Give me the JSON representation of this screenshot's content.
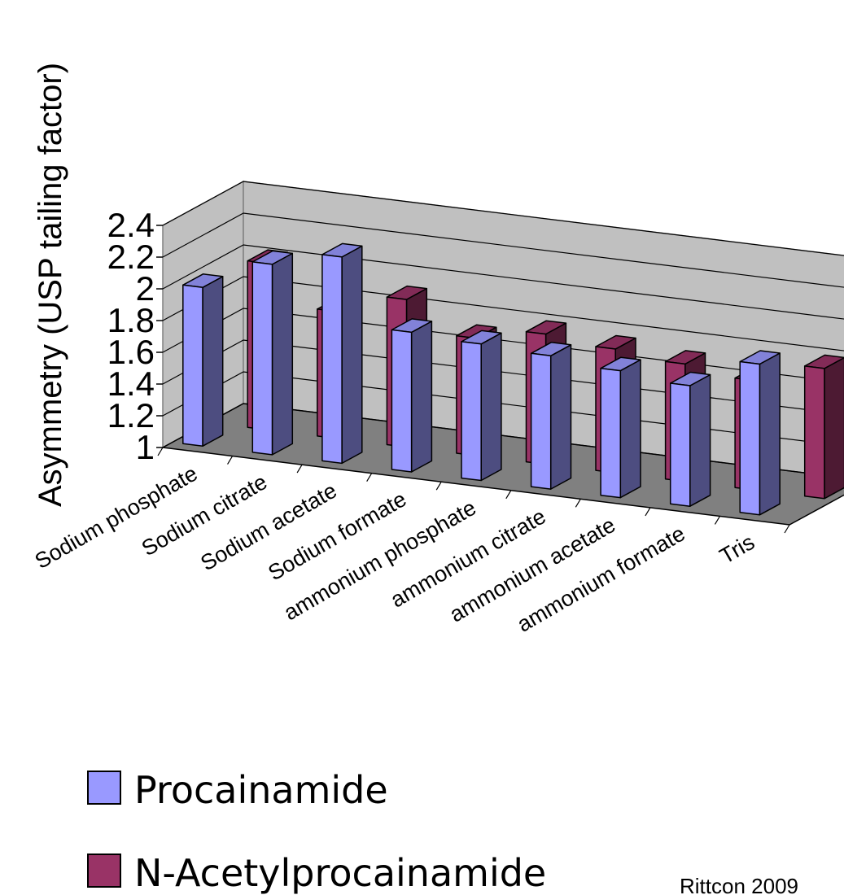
{
  "chart_data": {
    "type": "bar",
    "style": "3d-clustered-column",
    "categories": [
      "Sodium phosphate",
      "Sodium citrate",
      "Sodium acetate",
      "Sodium formate",
      "ammonium phosphate",
      "ammonium citrate",
      "ammonium acetate",
      "ammonium formate",
      "Tris"
    ],
    "series": [
      {
        "name": "Procainamide",
        "color": "#9999ff",
        "values": [
          2.0,
          2.2,
          2.3,
          1.88,
          1.86,
          1.84,
          1.8,
          1.76,
          1.95
        ]
      },
      {
        "name": "N-Acetylprocainamide",
        "color": "#993366",
        "values": [
          2.05,
          1.8,
          1.93,
          1.74,
          1.82,
          1.78,
          1.74,
          1.69,
          1.82
        ]
      }
    ],
    "ylabel": "Asymmetry (USP tailing factor)",
    "yticks": [
      "1",
      "1.2",
      "1.4",
      "1.6",
      "1.8",
      "2",
      "2.2",
      "2.4"
    ],
    "ylim": [
      1,
      2.4
    ],
    "grid": true,
    "legend_position": "bottom-left",
    "credit": "Rittcon 2009"
  }
}
